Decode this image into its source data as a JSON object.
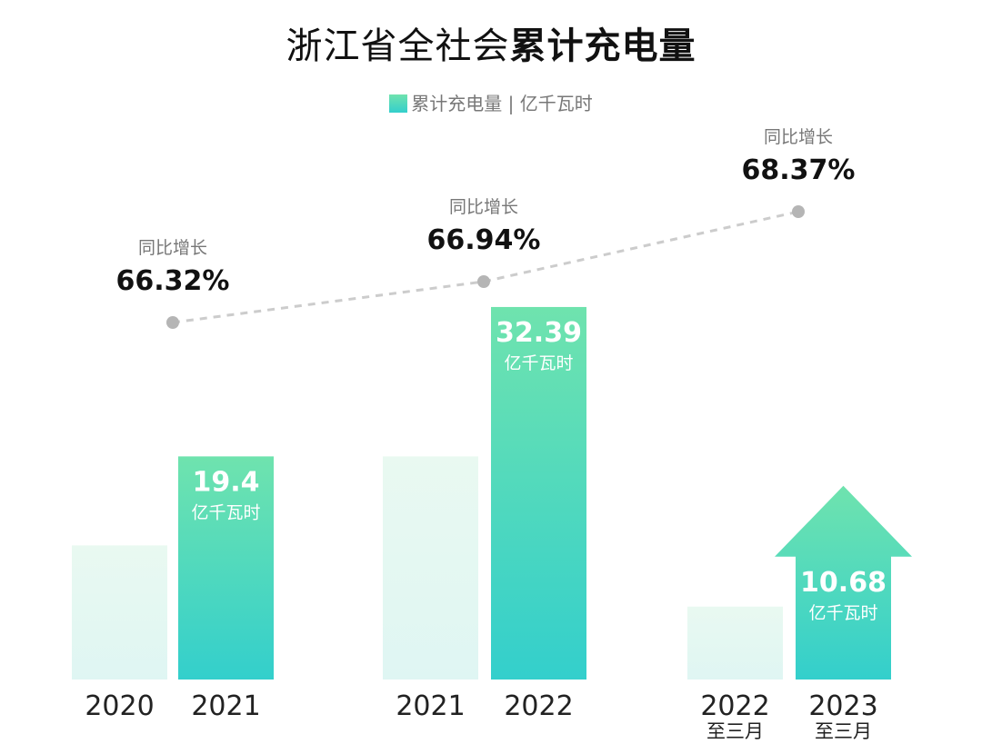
{
  "title": {
    "regular": "浙江省全社会",
    "bold": "累计充电量"
  },
  "legend": {
    "label": "累计充电量 | 亿千瓦时"
  },
  "colors": {
    "bar_gradient_top": "#6fe3ae",
    "bar_gradient_bottom": "#33cfcc",
    "prior_bar_top": "#e9f9f1",
    "prior_bar_bottom": "#dff6f3",
    "growth_line": "#cccccc",
    "growth_dot": "#b5b5b5"
  },
  "chart_data": {
    "type": "bar",
    "unit": "亿千瓦时",
    "groups": [
      {
        "prior": {
          "label": "2020",
          "sublabel": "",
          "value": 11.66
        },
        "current": {
          "label": "2021",
          "sublabel": "",
          "value": 19.4,
          "value_label": "19.4",
          "unit_label": "亿千瓦时"
        },
        "growth": {
          "label": "同比增长",
          "value": "66.32%"
        }
      },
      {
        "prior": {
          "label": "2021",
          "sublabel": "",
          "value": 19.4
        },
        "current": {
          "label": "2022",
          "sublabel": "",
          "value": 32.39,
          "value_label": "32.39",
          "unit_label": "亿千瓦时"
        },
        "growth": {
          "label": "同比增长",
          "value": "66.94%"
        }
      },
      {
        "prior": {
          "label": "2022",
          "sublabel": "至三月",
          "value": 6.34
        },
        "current": {
          "label": "2023",
          "sublabel": "至三月",
          "value": 10.68,
          "value_label": "10.68",
          "unit_label": "亿千瓦时",
          "arrow": true
        },
        "growth": {
          "label": "同比增长",
          "value": "68.37%"
        }
      }
    ],
    "growth_series": [
      66.32,
      66.94,
      68.37
    ]
  }
}
